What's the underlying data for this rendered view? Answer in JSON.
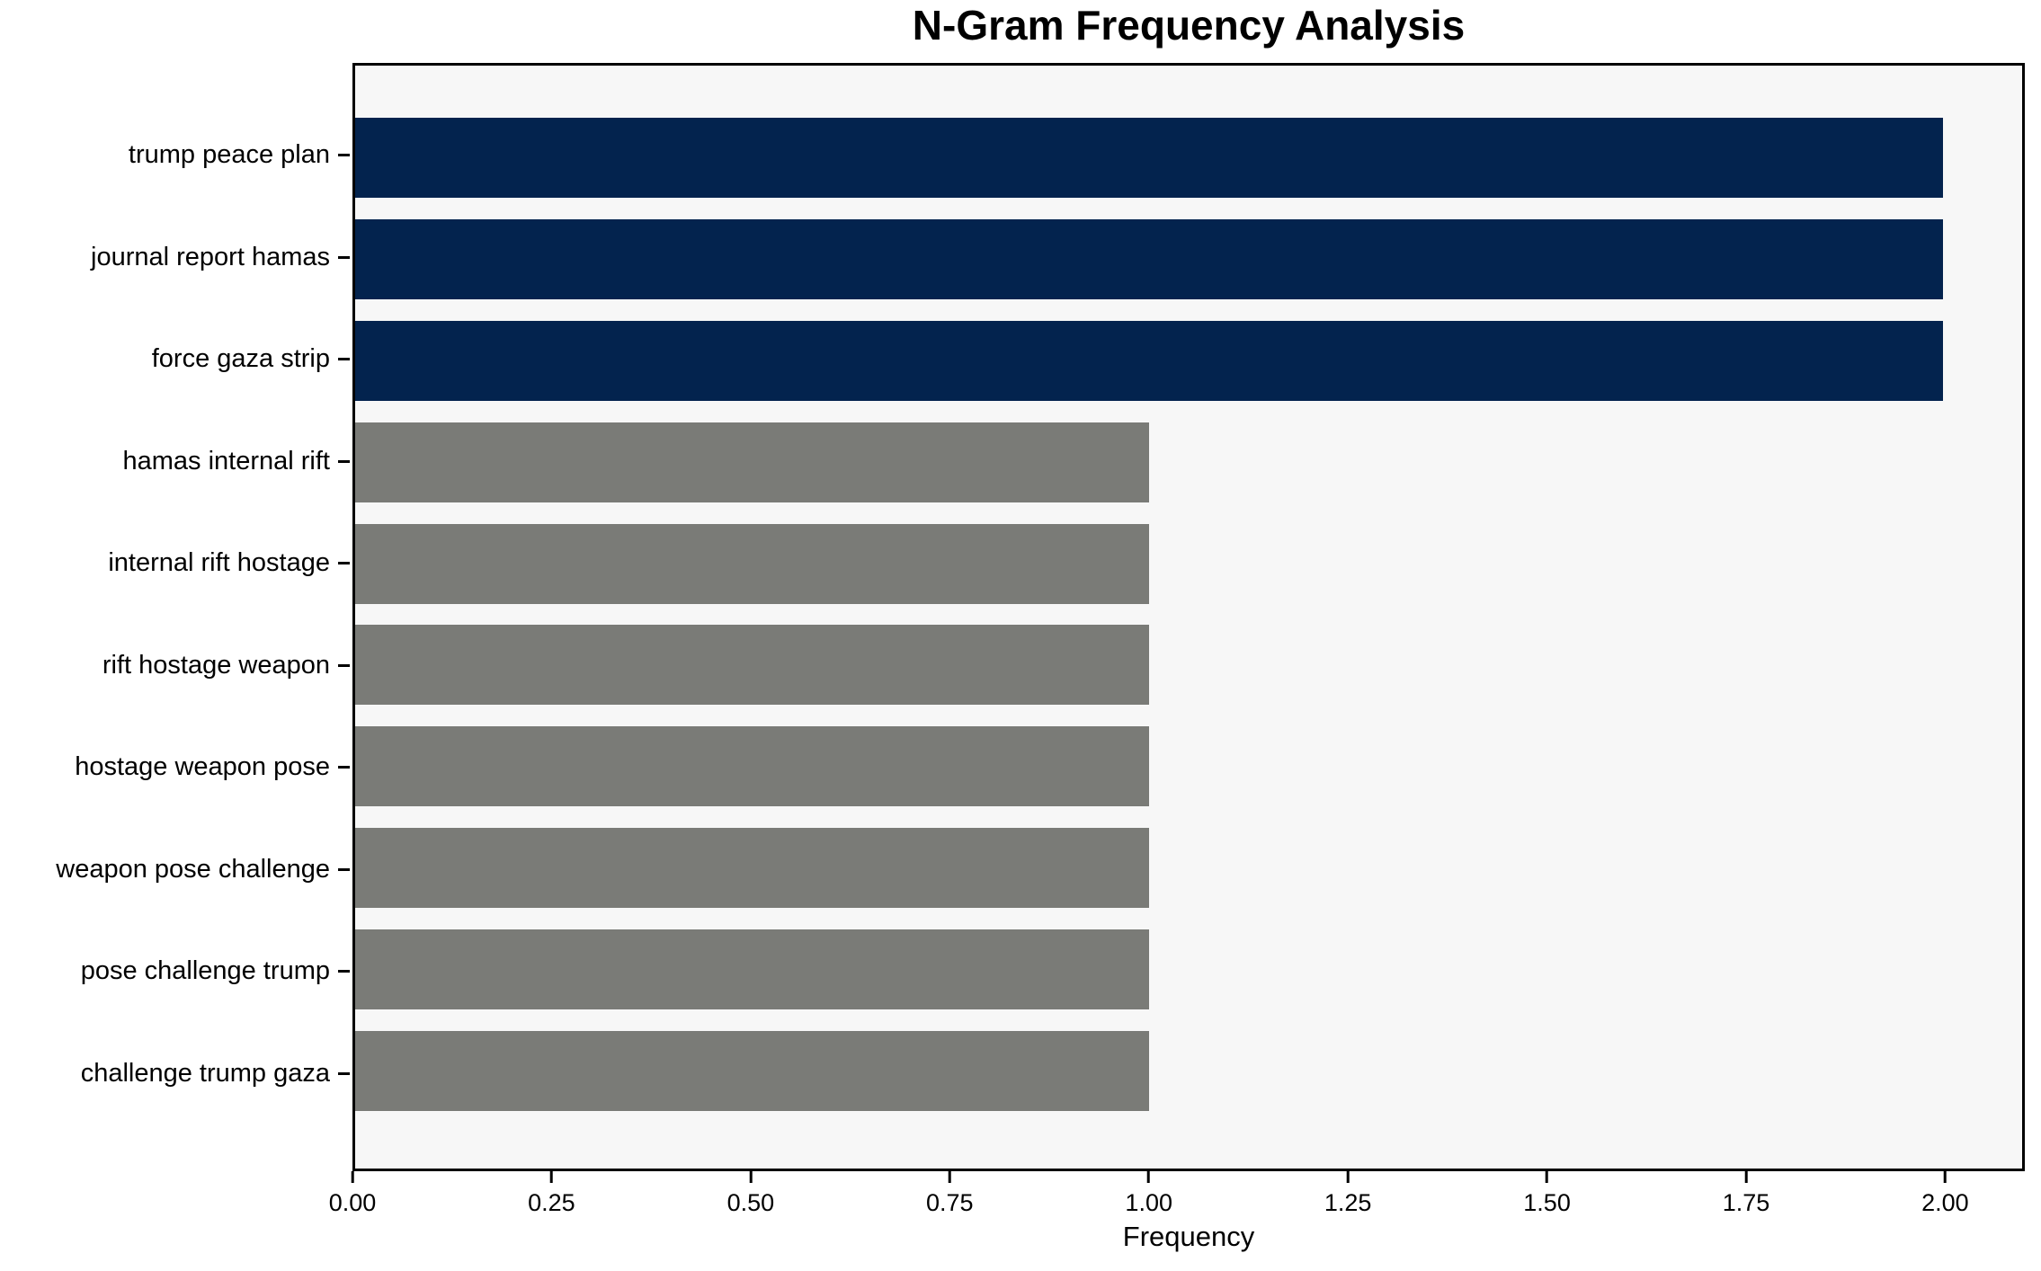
{
  "title": "N-Gram Frequency Analysis",
  "chart_data": {
    "type": "bar",
    "orientation": "horizontal",
    "title": "N-Gram Frequency Analysis",
    "xlabel": "Frequency",
    "ylabel": "",
    "categories": [
      "trump peace plan",
      "journal report hamas",
      "force gaza strip",
      "hamas internal rift",
      "internal rift hostage",
      "rift hostage weapon",
      "hostage weapon pose",
      "weapon pose challenge",
      "pose challenge trump",
      "challenge trump gaza"
    ],
    "values": [
      2,
      2,
      2,
      1,
      1,
      1,
      1,
      1,
      1,
      1
    ],
    "bar_colors": [
      "#03234e",
      "#03234e",
      "#03234e",
      "#7a7b77",
      "#7a7b77",
      "#7a7b77",
      "#7a7b77",
      "#7a7b77",
      "#7a7b77",
      "#7a7b77"
    ],
    "xlim": [
      0,
      2.1
    ],
    "xtick_values": [
      0,
      0.25,
      0.5,
      0.75,
      1,
      1.25,
      1.5,
      1.75,
      2
    ],
    "xtick_labels": [
      "0.00",
      "0.25",
      "0.50",
      "0.75",
      "1.00",
      "1.25",
      "1.50",
      "1.75",
      "2.00"
    ],
    "grid": false,
    "legend": null,
    "colors": {
      "highlight": "#03234e",
      "muted": "#7a7b77",
      "plot_background": "#f7f7f7",
      "figure_background": "#ffffff",
      "axis": "#000000",
      "text": "#000000"
    }
  }
}
